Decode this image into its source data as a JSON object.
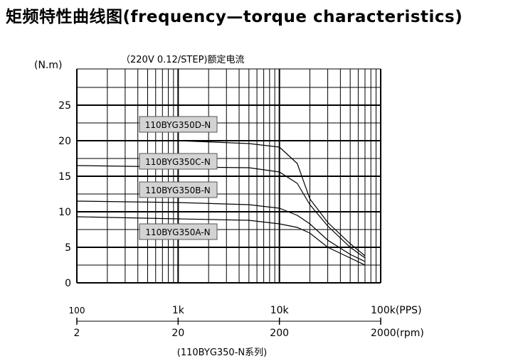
{
  "title": "矩频特性曲线图(frequency—torque characteristics)",
  "chart_data": {
    "type": "line",
    "subtitle": "（220V  0.12/STEP)额定电流",
    "ylabel": "(N.m)",
    "y_ticks": [
      "25",
      "20",
      "15",
      "10",
      "5",
      "0"
    ],
    "x_ticks_pps": [
      "100",
      "1k",
      "10k",
      "100k(PPS)"
    ],
    "x_ticks_rpm": [
      "2",
      "20",
      "200",
      "2000(rpm)"
    ],
    "caption": "(110BYG350-N系列)",
    "ylim": [
      0,
      25
    ],
    "xscale": "log",
    "xlim_pps": [
      100,
      100000
    ],
    "grid": true,
    "series": [
      {
        "name": "110BYG350D-N",
        "x": [
          100,
          1000,
          5000,
          10000,
          15000,
          20000,
          30000,
          50000,
          70000
        ],
        "y": [
          20,
          20,
          19.6,
          19.1,
          16.8,
          11.8,
          8.5,
          5.5,
          3.8
        ]
      },
      {
        "name": "110BYG350C-N",
        "x": [
          100,
          1000,
          5000,
          10000,
          15000,
          20000,
          30000,
          50000,
          70000
        ],
        "y": [
          16.5,
          16.3,
          16.2,
          15.6,
          14.0,
          11.0,
          8.0,
          5.0,
          3.5
        ]
      },
      {
        "name": "110BYG350B-N",
        "x": [
          100,
          1000,
          5000,
          10000,
          15000,
          20000,
          30000,
          50000,
          70000
        ],
        "y": [
          11.5,
          11.3,
          11.0,
          10.5,
          9.5,
          8.3,
          6.0,
          4.0,
          3.0
        ]
      },
      {
        "name": "110BYG350A-N",
        "x": [
          100,
          1000,
          5000,
          10000,
          15000,
          20000,
          30000,
          50000,
          70000
        ],
        "y": [
          9.3,
          9.0,
          8.8,
          8.3,
          7.8,
          7.0,
          5.0,
          3.5,
          2.5
        ]
      }
    ]
  }
}
